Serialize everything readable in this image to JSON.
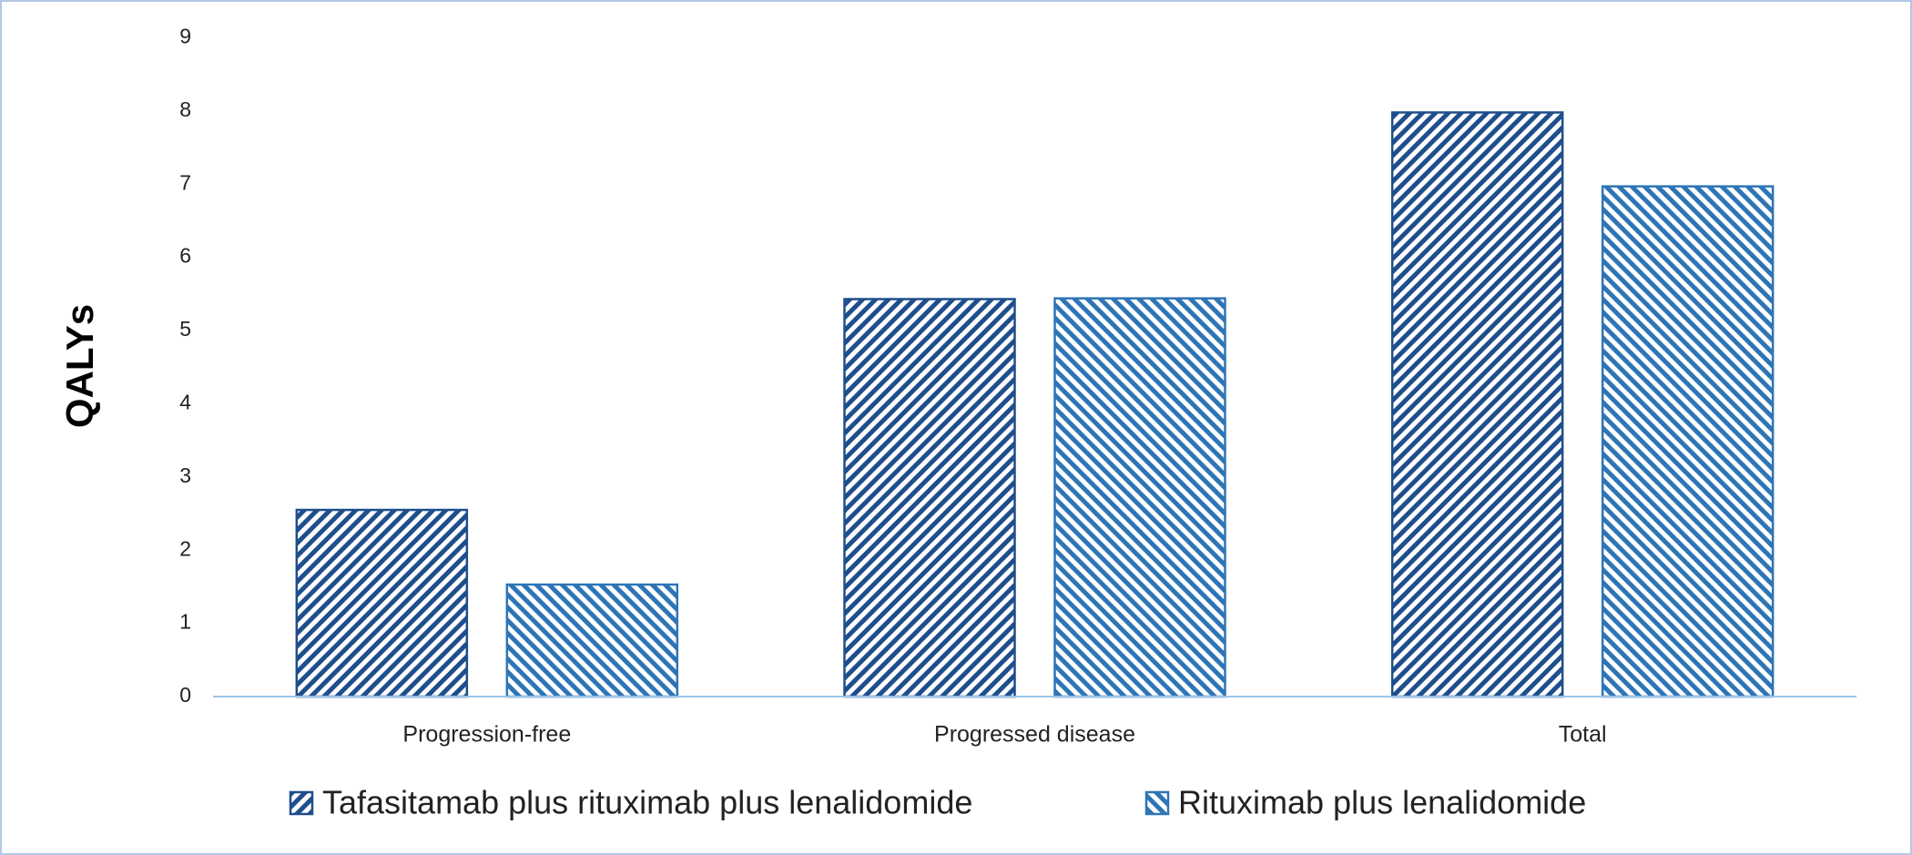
{
  "chart_data": {
    "type": "bar",
    "y_label": "QALYs",
    "categories": [
      "Progression-free",
      "Progressed disease",
      "Total"
    ],
    "series": [
      {
        "name": "Tafasitamab plus rituximab plus lenalidomide",
        "color": "#1f4e8c",
        "values": [
          2.55,
          5.43,
          7.98
        ]
      },
      {
        "name": "Rituximab plus lenalidomide",
        "color": "#2e75b6",
        "values": [
          1.53,
          5.44,
          6.97
        ]
      }
    ],
    "ylim": [
      0,
      9
    ],
    "yticks": [
      0,
      1,
      2,
      3,
      4,
      5,
      6,
      7,
      8,
      9
    ],
    "grid": false,
    "legend": "bottom"
  }
}
